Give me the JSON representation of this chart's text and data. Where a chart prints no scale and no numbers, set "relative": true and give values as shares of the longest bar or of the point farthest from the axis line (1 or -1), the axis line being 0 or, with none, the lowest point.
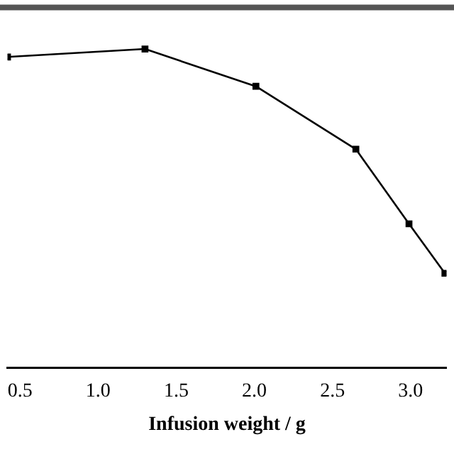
{
  "chart_data": {
    "type": "line",
    "xlabel": "Infusion weight / g",
    "relative": true,
    "x": [
      0.42,
      1.3,
      2.01,
      2.65,
      2.99,
      3.22
    ],
    "series": [
      {
        "color": "#000000",
        "values": [
          0.975,
          1,
          0.883,
          0.686,
          0.452,
          0.297
        ]
      }
    ],
    "xlim": [
      0.42,
      3.23
    ],
    "xticks": [
      {
        "value": 0.5,
        "label": "0.5"
      },
      {
        "value": 1,
        "label": "1.0"
      },
      {
        "value": 1.5,
        "label": "1.5"
      },
      {
        "value": 2,
        "label": "2.0"
      },
      {
        "value": 2.5,
        "label": "2.5"
      },
      {
        "value": 3,
        "label": "3.0"
      }
    ],
    "marker": "square",
    "line_style": "solid",
    "grid": false,
    "legend": false
  }
}
